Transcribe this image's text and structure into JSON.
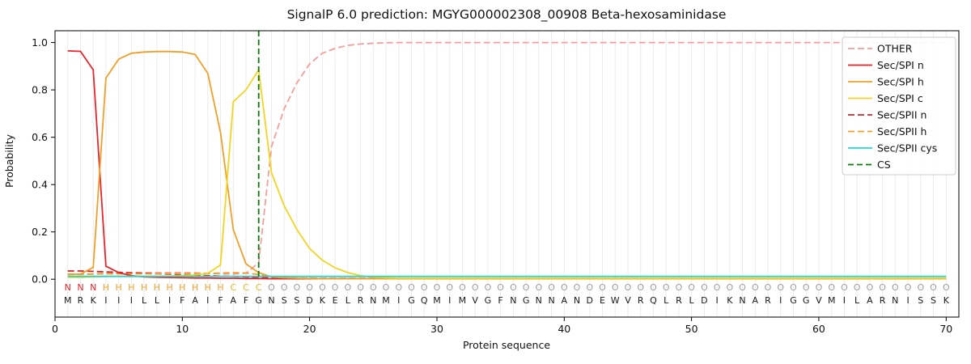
{
  "chart_data": {
    "type": "line",
    "title": "SignalP 6.0 prediction: MGYG000002308_00908 Beta-hexosaminidase",
    "xlabel": "Protein sequence",
    "ylabel": "Probability",
    "xlim": [
      0,
      71
    ],
    "ylim": [
      -0.16,
      1.05
    ],
    "xticks": [
      0,
      10,
      20,
      30,
      40,
      50,
      60,
      70
    ],
    "yticks": [
      0.0,
      0.2,
      0.4,
      0.6,
      0.8,
      1.0
    ],
    "grid": true,
    "grid_color": "#ebebeb",
    "x_start": 1,
    "n_positions": 70,
    "sequence": "MRKIIILLIFAIFAFGNSSDKELRNMIGQMIMVGFNGNNANDEWVRQLRLDIKNARIGGVMILARNISSK",
    "state_labels": "NNNHHHHHHHHHHCCCOOOOOOOOOOOOOOOOOOOOOOOOOOOOOOOOOOOOOOOOOOOOOOOOOOOOOO",
    "state_colors": {
      "N": "#e8232a",
      "H": "#f0a028",
      "C": "#e3bb1a",
      "O": "#9e9e9e"
    },
    "sequence_color": "#1a1a1a",
    "cs": {
      "label": "CS",
      "position": 16,
      "color": "#0b7a0b",
      "dash": "7 4"
    },
    "series": [
      {
        "name": "OTHER",
        "color": "#f59d9d",
        "dash": "8 4",
        "values": [
          0.02,
          0.02,
          0.022,
          0.025,
          0.027,
          0.028,
          0.028,
          0.028,
          0.028,
          0.028,
          0.027,
          0.025,
          0.023,
          0.022,
          0.025,
          0.07,
          0.56,
          0.72,
          0.83,
          0.91,
          0.955,
          0.975,
          0.988,
          0.994,
          0.997,
          0.999,
          1.0,
          1.0,
          1.0,
          1.0,
          1.0,
          1.0,
          1.0,
          1.0,
          1.0,
          1.0,
          1.0,
          1.0,
          1.0,
          1.0,
          1.0,
          1.0,
          1.0,
          1.0,
          1.0,
          1.0,
          1.0,
          1.0,
          1.0,
          1.0,
          1.0,
          1.0,
          1.0,
          1.0,
          1.0,
          1.0,
          1.0,
          1.0,
          1.0,
          1.0,
          1.0,
          1.0,
          1.0,
          1.0,
          1.0,
          1.0,
          1.0,
          1.0,
          1.0,
          1.0
        ]
      },
      {
        "name": "Sec/SPII n",
        "color": "#cc2529",
        "dash": "8 4",
        "values": [
          0.035,
          0.035,
          0.033,
          0.031,
          0.029,
          0.027,
          0.025,
          0.023,
          0.021,
          0.019,
          0.017,
          0.015,
          0.013,
          0.012,
          0.01,
          0.008,
          0.006,
          0.005,
          0.004,
          0.004,
          0.003,
          0.003,
          0.003,
          0.003,
          0.003,
          0.003,
          0.003,
          0.003,
          0.003,
          0.003,
          0.003,
          0.003,
          0.003,
          0.003,
          0.003,
          0.003,
          0.003,
          0.003,
          0.003,
          0.003,
          0.003,
          0.003,
          0.003,
          0.003,
          0.003,
          0.003,
          0.003,
          0.003,
          0.003,
          0.003,
          0.003,
          0.003,
          0.003,
          0.003,
          0.003,
          0.003,
          0.003,
          0.003,
          0.003,
          0.003,
          0.003,
          0.003,
          0.003,
          0.003,
          0.003,
          0.003,
          0.003,
          0.003,
          0.003,
          0.003
        ]
      },
      {
        "name": "Sec/SPII h",
        "color": "#f0a028",
        "dash": "8 4",
        "values": [
          0.022,
          0.022,
          0.022,
          0.023,
          0.023,
          0.023,
          0.023,
          0.023,
          0.023,
          0.023,
          0.023,
          0.024,
          0.026,
          0.028,
          0.026,
          0.02,
          0.01,
          0.006,
          0.005,
          0.004,
          0.003,
          0.003,
          0.003,
          0.003,
          0.003,
          0.003,
          0.003,
          0.003,
          0.003,
          0.003,
          0.003,
          0.003,
          0.003,
          0.003,
          0.003,
          0.003,
          0.003,
          0.003,
          0.003,
          0.003,
          0.003,
          0.003,
          0.003,
          0.003,
          0.003,
          0.003,
          0.003,
          0.003,
          0.003,
          0.003,
          0.003,
          0.003,
          0.003,
          0.003,
          0.003,
          0.003,
          0.003,
          0.003,
          0.003,
          0.003,
          0.003,
          0.003,
          0.003,
          0.003,
          0.003,
          0.003,
          0.003,
          0.003,
          0.003,
          0.003
        ]
      },
      {
        "name": "Sec/SPI n",
        "color": "#e8232a",
        "dash": null,
        "values": [
          0.965,
          0.963,
          0.885,
          0.055,
          0.028,
          0.015,
          0.01,
          0.008,
          0.007,
          0.006,
          0.005,
          0.005,
          0.004,
          0.004,
          0.003,
          0.003,
          0.002,
          0.002,
          0.002,
          0.002,
          0.002,
          0.002,
          0.002,
          0.002,
          0.002,
          0.002,
          0.002,
          0.002,
          0.002,
          0.002,
          0.002,
          0.002,
          0.002,
          0.002,
          0.002,
          0.002,
          0.002,
          0.002,
          0.002,
          0.002,
          0.002,
          0.002,
          0.002,
          0.002,
          0.002,
          0.002,
          0.002,
          0.002,
          0.002,
          0.002,
          0.002,
          0.002,
          0.002,
          0.002,
          0.002,
          0.002,
          0.002,
          0.002,
          0.002,
          0.002,
          0.002,
          0.002,
          0.002,
          0.002,
          0.002,
          0.002,
          0.002,
          0.002,
          0.002,
          0.002
        ]
      },
      {
        "name": "Sec/SPI h",
        "color": "#f0a028",
        "dash": null,
        "values": [
          0.02,
          0.022,
          0.05,
          0.85,
          0.93,
          0.955,
          0.96,
          0.962,
          0.962,
          0.96,
          0.95,
          0.87,
          0.62,
          0.21,
          0.065,
          0.028,
          0.01,
          0.006,
          0.004,
          0.003,
          0.002,
          0.002,
          0.002,
          0.002,
          0.002,
          0.002,
          0.002,
          0.002,
          0.002,
          0.002,
          0.002,
          0.002,
          0.002,
          0.002,
          0.002,
          0.002,
          0.002,
          0.002,
          0.002,
          0.002,
          0.002,
          0.002,
          0.002,
          0.002,
          0.002,
          0.002,
          0.002,
          0.002,
          0.002,
          0.002,
          0.002,
          0.002,
          0.002,
          0.002,
          0.002,
          0.002,
          0.002,
          0.002,
          0.002,
          0.002,
          0.002,
          0.002,
          0.002,
          0.002,
          0.002,
          0.002,
          0.002,
          0.002,
          0.002,
          0.002
        ]
      },
      {
        "name": "Sec/SPI c",
        "color": "#f3d41f",
        "dash": null,
        "values": [
          0.008,
          0.008,
          0.01,
          0.012,
          0.012,
          0.012,
          0.012,
          0.012,
          0.013,
          0.015,
          0.018,
          0.025,
          0.06,
          0.75,
          0.8,
          0.885,
          0.45,
          0.31,
          0.21,
          0.13,
          0.08,
          0.048,
          0.028,
          0.015,
          0.009,
          0.006,
          0.004,
          0.004,
          0.004,
          0.004,
          0.004,
          0.004,
          0.004,
          0.004,
          0.004,
          0.004,
          0.004,
          0.004,
          0.004,
          0.004,
          0.004,
          0.004,
          0.004,
          0.004,
          0.004,
          0.004,
          0.004,
          0.004,
          0.004,
          0.004,
          0.004,
          0.004,
          0.004,
          0.004,
          0.004,
          0.004,
          0.004,
          0.004,
          0.004,
          0.004,
          0.004,
          0.004,
          0.004,
          0.004,
          0.004,
          0.004,
          0.004,
          0.004,
          0.004,
          0.004
        ]
      },
      {
        "name": "Sec/SPII cys",
        "color": "#22d6d6",
        "dash": null,
        "values": [
          0.012,
          0.012,
          0.012,
          0.012,
          0.012,
          0.012,
          0.012,
          0.012,
          0.012,
          0.012,
          0.012,
          0.012,
          0.012,
          0.012,
          0.012,
          0.012,
          0.012,
          0.012,
          0.012,
          0.012,
          0.012,
          0.012,
          0.012,
          0.012,
          0.012,
          0.012,
          0.012,
          0.012,
          0.012,
          0.012,
          0.012,
          0.012,
          0.012,
          0.012,
          0.012,
          0.012,
          0.012,
          0.012,
          0.012,
          0.012,
          0.012,
          0.012,
          0.012,
          0.012,
          0.012,
          0.012,
          0.012,
          0.012,
          0.012,
          0.012,
          0.012,
          0.012,
          0.012,
          0.012,
          0.012,
          0.012,
          0.012,
          0.012,
          0.012,
          0.012,
          0.012,
          0.012,
          0.012,
          0.012,
          0.012,
          0.012,
          0.012,
          0.012,
          0.012,
          0.012
        ]
      }
    ]
  },
  "legend": {
    "items": [
      {
        "label": "OTHER",
        "color": "#f59d9d",
        "dash": "8 4"
      },
      {
        "label": "Sec/SPI n",
        "color": "#e8232a",
        "dash": null
      },
      {
        "label": "Sec/SPI h",
        "color": "#f0a028",
        "dash": null
      },
      {
        "label": "Sec/SPI c",
        "color": "#f3d41f",
        "dash": null
      },
      {
        "label": "Sec/SPII n",
        "color": "#cc2529",
        "dash": "8 4"
      },
      {
        "label": "Sec/SPII h",
        "color": "#f0a028",
        "dash": "8 4"
      },
      {
        "label": "Sec/SPII cys",
        "color": "#22d6d6",
        "dash": null
      },
      {
        "label": "CS",
        "color": "#0b7a0b",
        "dash": "7 4"
      }
    ]
  }
}
